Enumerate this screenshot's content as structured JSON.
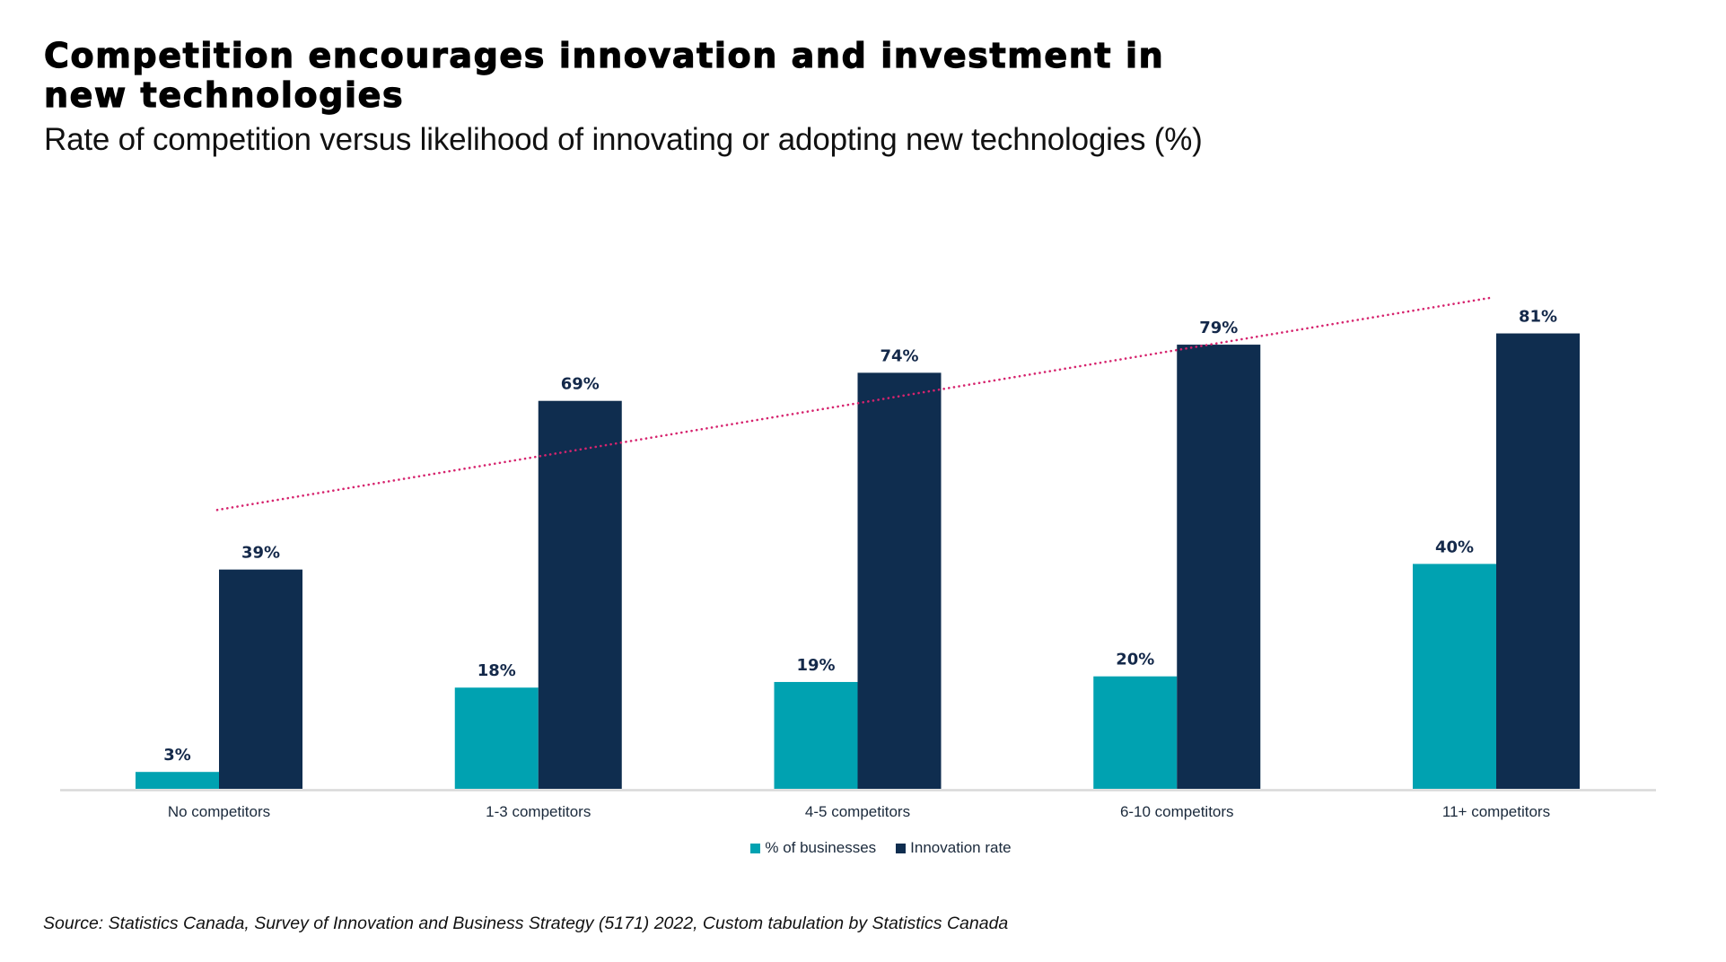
{
  "header": {
    "title_lines": [
      "Competition encourages innovation and investment in",
      "new technologies"
    ],
    "subtitle": "Rate of competition versus likelihood of innovating or adopting new technologies (%)"
  },
  "footer": {
    "source": "Source: Statistics Canada, Survey of Innovation and Business Strategy (5171) 2022, Custom tabulation by Statistics Canada"
  },
  "colors": {
    "businesses": "#00a2b1",
    "innovation": "#0f2d4f",
    "trendline": "#d6246e",
    "axis": "#d9d9d9",
    "label_text": "#14294a"
  },
  "chart_data": {
    "type": "bar",
    "title": "Competition encourages innovation and investment in new technologies",
    "subtitle": "Rate of competition versus likelihood of innovating or adopting new technologies (%)",
    "xlabel": "",
    "ylabel": "",
    "categories": [
      "No competitors",
      "1-3 competitors",
      "4-5 competitors",
      "6-10 competitors",
      "11+ competitors"
    ],
    "series": [
      {
        "name": "% of businesses",
        "values": [
          3,
          18,
          19,
          20,
          40
        ],
        "labels": [
          "3%",
          "18%",
          "19%",
          "20%",
          "40%"
        ]
      },
      {
        "name": "Innovation rate",
        "values": [
          39,
          69,
          74,
          79,
          81
        ],
        "labels": [
          "39%",
          "69%",
          "74%",
          "79%",
          "81%"
        ]
      }
    ],
    "trendline": {
      "series": "Innovation rate",
      "style": "dotted",
      "start_value": 49.6,
      "end_value": 87.4
    },
    "ylim": [
      0,
      100
    ],
    "y_axis_visible": false,
    "grid": false,
    "legend": {
      "position": "bottom-center",
      "entries": [
        "% of businesses",
        "Innovation rate"
      ]
    }
  }
}
